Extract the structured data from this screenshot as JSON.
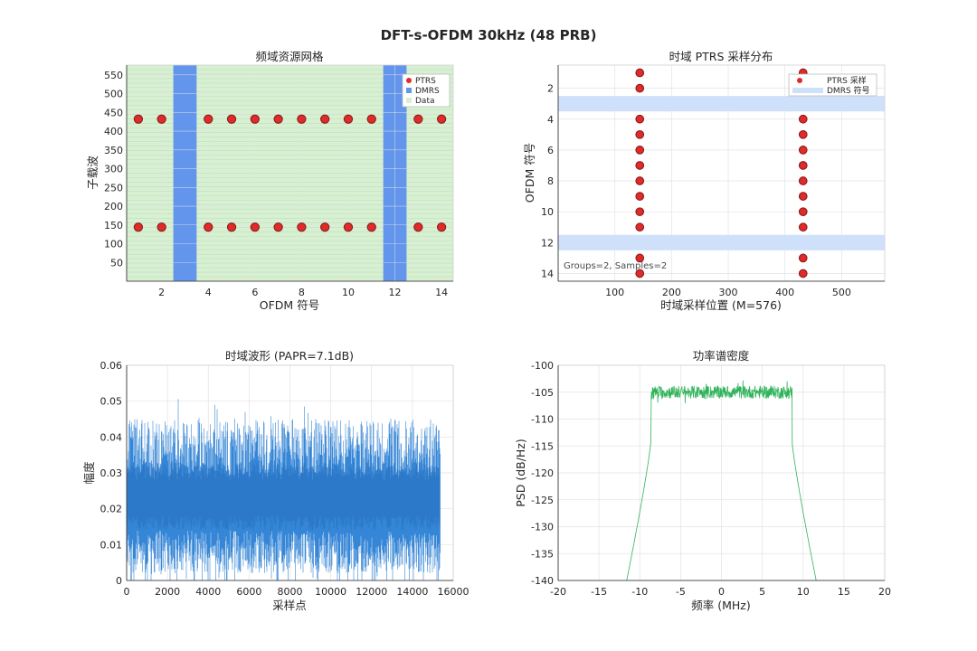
{
  "figure_title": "DFT-s-OFDM 30kHz (48 PRB)",
  "colors": {
    "ptrs_face": "#e02b2b",
    "ptrs_edge": "#8b1a1a",
    "dmrs": "#6495ed",
    "dmrs_band": "#cfe0fb",
    "data": "#d7f0d2",
    "data_line": "#b5d8b0",
    "waveform": "#2a7fd4",
    "psd": "#2fb35a",
    "grid": "#e3e3e3",
    "axis": "#262626"
  },
  "chart_data": [
    {
      "type": "scatter",
      "title": "频域资源网格",
      "xlabel": "OFDM 符号",
      "ylabel": "子载波",
      "xlim": [
        0.5,
        14.5
      ],
      "ylim": [
        0,
        576
      ],
      "xticks": [
        2,
        4,
        6,
        8,
        10,
        12,
        14
      ],
      "yticks": [
        50,
        100,
        150,
        200,
        250,
        300,
        350,
        400,
        450,
        500,
        550
      ],
      "data_symbols": [
        1,
        2,
        4,
        5,
        6,
        7,
        8,
        9,
        10,
        11,
        13,
        14
      ],
      "dmrs_symbols": [
        3,
        12
      ],
      "ptrs_subcarriers": [
        144,
        432
      ],
      "legend": [
        "PTRS",
        "DMRS",
        "Data"
      ],
      "legend_position": "top-right",
      "grid": true
    },
    {
      "type": "scatter",
      "title": "时域 PTRS 采样分布",
      "xlabel": "时域采样位置 (M=576)",
      "ylabel": "OFDM 符号",
      "xlim": [
        0,
        576
      ],
      "ylim": [
        14.5,
        0.5
      ],
      "y_reversed": true,
      "xticks": [
        100,
        200,
        300,
        400,
        500
      ],
      "yticks": [
        2,
        4,
        6,
        8,
        10,
        12,
        14
      ],
      "ptrs_positions": [
        144,
        432
      ],
      "ptrs_symbols": [
        1,
        2,
        4,
        5,
        6,
        7,
        8,
        9,
        10,
        11,
        13,
        14
      ],
      "dmrs_symbols": [
        3,
        12
      ],
      "legend": [
        "PTRS 采样",
        "DMRS 符号"
      ],
      "legend_position": "top-right",
      "annotation": "Groups=2, Samples=2",
      "grid": true
    },
    {
      "type": "line",
      "title": "时域波形 (PAPR=7.1dB)",
      "xlabel": "采样点",
      "ylabel": "幅度",
      "xlim": [
        0,
        16000
      ],
      "ylim": [
        0,
        0.06
      ],
      "xticks": [
        0,
        2000,
        4000,
        6000,
        8000,
        10000,
        12000,
        14000,
        16000
      ],
      "yticks": [
        0,
        0.01,
        0.02,
        0.03,
        0.04,
        0.05,
        0.06
      ],
      "ytick_labels": [
        "0",
        "0.01",
        "0.02",
        "0.03",
        "0.04",
        "0.05",
        "0.06"
      ],
      "n_samples": 15360,
      "mean_amplitude": 0.022,
      "typical_max": 0.045,
      "peak_max": 0.052,
      "grid": true
    },
    {
      "type": "line",
      "title": "功率谱密度",
      "xlabel": "频率 (MHz)",
      "ylabel": "PSD (dB/Hz)",
      "xlim": [
        -20,
        20
      ],
      "ylim": [
        -140,
        -100
      ],
      "xticks": [
        -20,
        -15,
        -10,
        -5,
        0,
        5,
        10,
        15,
        20
      ],
      "yticks": [
        -140,
        -135,
        -130,
        -125,
        -120,
        -115,
        -110,
        -105,
        -100
      ],
      "x_start": -15,
      "x_end": 15,
      "inband_edges": [
        -8.64,
        8.64
      ],
      "inband_level": -105,
      "floor_level": -140,
      "grid": true
    }
  ]
}
